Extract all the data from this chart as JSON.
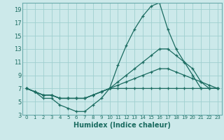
{
  "xlabel": "Humidex (Indice chaleur)",
  "background_color": "#cce9ea",
  "grid_color": "#9fcfcf",
  "line_color": "#1a6b60",
  "xlim": [
    -0.5,
    23.5
  ],
  "ylim": [
    3,
    20
  ],
  "yticks": [
    3,
    5,
    7,
    9,
    11,
    13,
    15,
    17,
    19
  ],
  "xticks": [
    0,
    1,
    2,
    3,
    4,
    5,
    6,
    7,
    8,
    9,
    10,
    11,
    12,
    13,
    14,
    15,
    16,
    17,
    18,
    19,
    20,
    21,
    22,
    23
  ],
  "series": [
    {
      "x": [
        0,
        1,
        2,
        3,
        4,
        5,
        6,
        7,
        8,
        9,
        10,
        11,
        12,
        13,
        14,
        15,
        16,
        17,
        18,
        19,
        20,
        21,
        22,
        23
      ],
      "y": [
        7,
        6.5,
        5.5,
        5.5,
        4.5,
        4,
        3.5,
        3.5,
        4.5,
        5.5,
        7,
        10.5,
        13.5,
        16,
        18,
        19.5,
        20,
        16,
        13,
        11,
        9,
        7,
        7,
        7
      ]
    },
    {
      "x": [
        0,
        1,
        2,
        3,
        4,
        5,
        6,
        7,
        8,
        9,
        10,
        11,
        12,
        13,
        14,
        15,
        16,
        17,
        18,
        19,
        20,
        21,
        22,
        23
      ],
      "y": [
        7,
        6.5,
        6,
        6,
        5.5,
        5.5,
        5.5,
        5.5,
        6,
        6.5,
        7,
        8,
        9,
        10,
        11,
        12,
        13,
        13,
        12,
        11,
        10,
        8,
        7,
        7
      ]
    },
    {
      "x": [
        0,
        1,
        2,
        3,
        4,
        5,
        6,
        7,
        8,
        9,
        10,
        11,
        12,
        13,
        14,
        15,
        16,
        17,
        18,
        19,
        20,
        21,
        22,
        23
      ],
      "y": [
        7,
        6.5,
        6,
        6,
        5.5,
        5.5,
        5.5,
        5.5,
        6,
        6.5,
        7,
        7.5,
        8,
        8.5,
        9,
        9.5,
        10,
        10,
        9.5,
        9,
        8.5,
        8,
        7.5,
        7
      ]
    },
    {
      "x": [
        0,
        1,
        2,
        3,
        4,
        5,
        6,
        7,
        8,
        9,
        10,
        11,
        12,
        13,
        14,
        15,
        16,
        17,
        18,
        19,
        20,
        21,
        22,
        23
      ],
      "y": [
        7,
        6.5,
        6,
        6,
        5.5,
        5.5,
        5.5,
        5.5,
        6,
        6.5,
        7,
        7,
        7,
        7,
        7,
        7,
        7,
        7,
        7,
        7,
        7,
        7,
        7,
        7
      ]
    }
  ]
}
